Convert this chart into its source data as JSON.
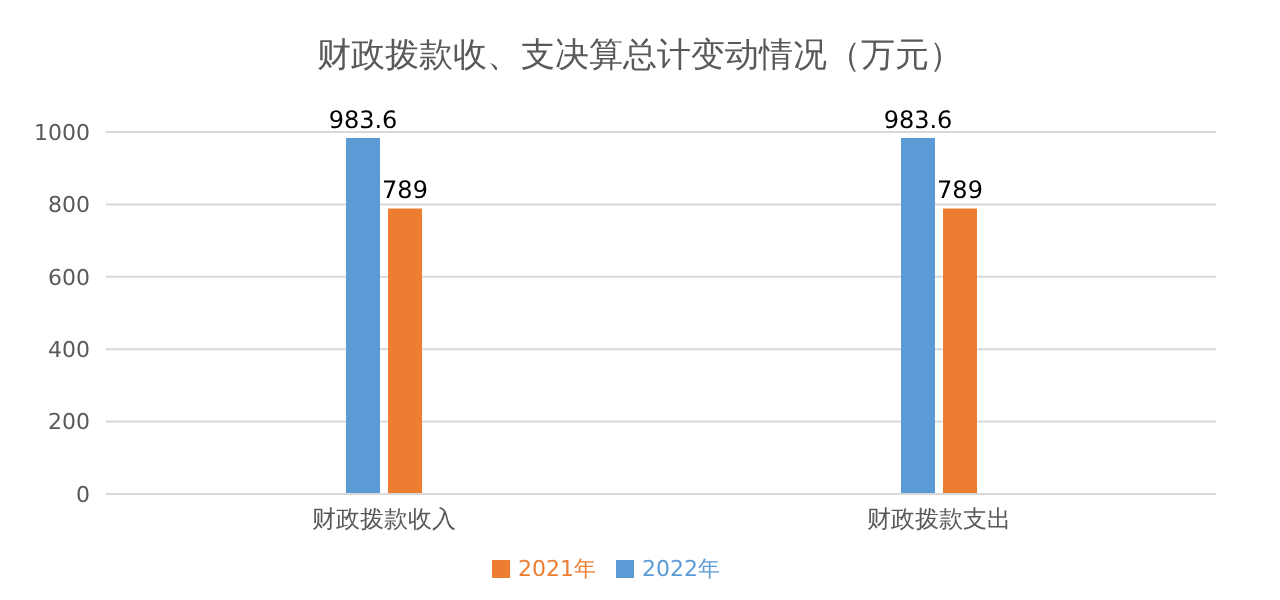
{
  "chart_data": {
    "type": "bar",
    "title": "财政拨款收、支决算总计变动情况（万元）",
    "categories": [
      "财政拨款收入",
      "财政拨款支出"
    ],
    "series": [
      {
        "name": "2022年",
        "color": "#5b9bd5",
        "values": [
          983.6,
          983.6
        ]
      },
      {
        "name": "2021年",
        "color": "#ed7d31",
        "values": [
          789,
          789
        ]
      }
    ],
    "ylim": [
      0,
      1000
    ],
    "yticks": [
      0,
      200,
      400,
      600,
      800,
      1000
    ],
    "grid": "y",
    "legend": "bottom",
    "data_labels": true
  }
}
